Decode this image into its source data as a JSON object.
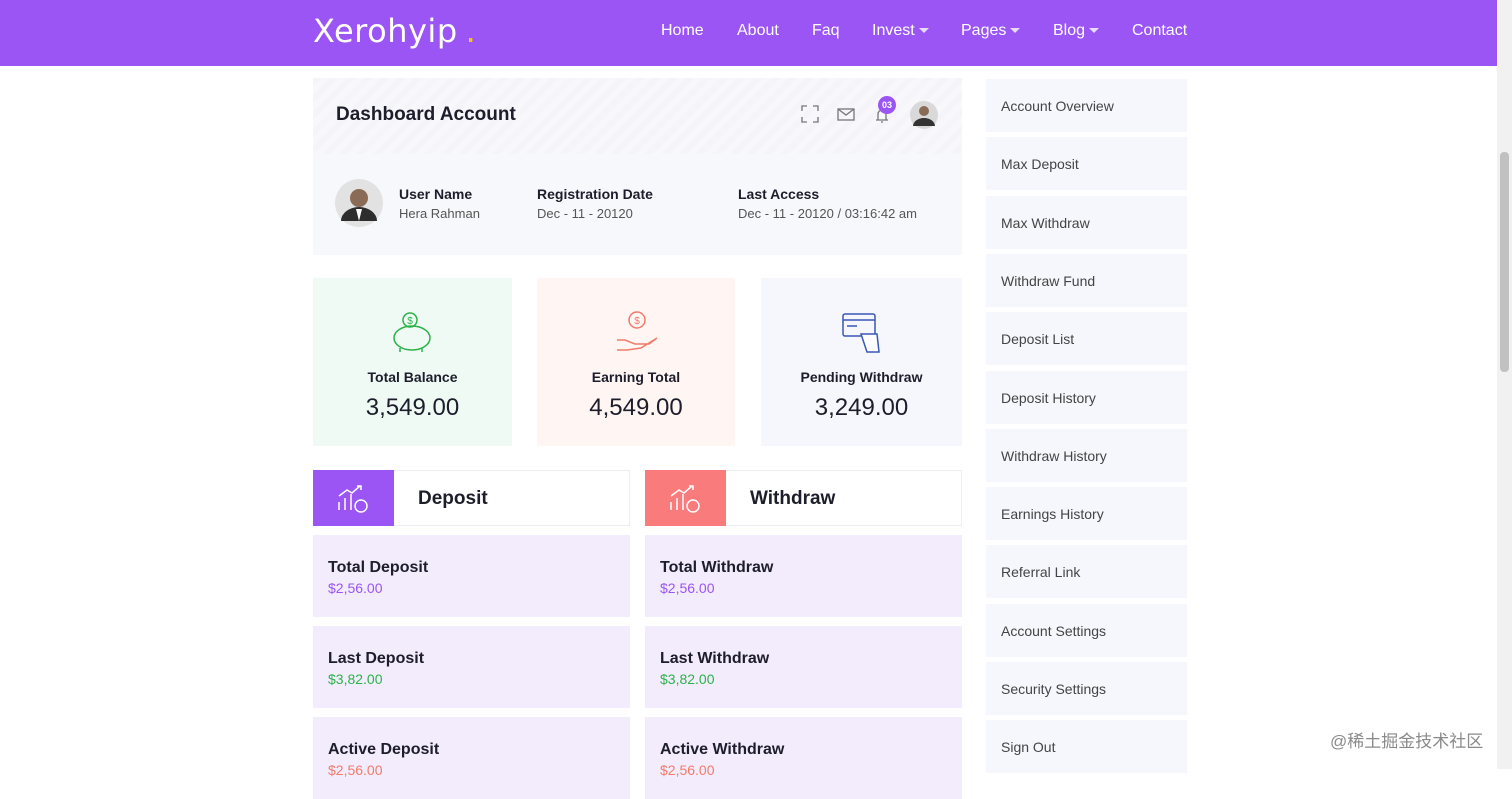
{
  "header": {
    "brand": "Xerohyip",
    "brand_dot": ".",
    "nav": [
      {
        "label": "Home",
        "dropdown": false
      },
      {
        "label": "About",
        "dropdown": false
      },
      {
        "label": "Faq",
        "dropdown": false
      },
      {
        "label": "Invest",
        "dropdown": true
      },
      {
        "label": "Pages",
        "dropdown": true
      },
      {
        "label": "Blog",
        "dropdown": true
      },
      {
        "label": "Contact",
        "dropdown": false
      }
    ]
  },
  "dashboard": {
    "title": "Dashboard Account",
    "notification_count": "03",
    "user": [
      {
        "label": "User Name",
        "value": "Hera Rahman"
      },
      {
        "label": "Registration Date",
        "value": "Dec - 11 - 20120"
      },
      {
        "label": "Last Access",
        "value": "Dec - 11 - 20120 / 03:16:42 am"
      }
    ]
  },
  "stats": [
    {
      "label": "Total Balance",
      "value": "3,549.00"
    },
    {
      "label": "Earning Total",
      "value": "4,549.00"
    },
    {
      "label": "Pending Withdraw",
      "value": "3,249.00"
    }
  ],
  "panels": [
    {
      "title": "Deposit",
      "items": [
        {
          "label": "Total Deposit",
          "value": "$2,56.00"
        },
        {
          "label": "Last Deposit",
          "value": "$3,82.00"
        },
        {
          "label": "Active Deposit",
          "value": "$2,56.00"
        }
      ]
    },
    {
      "title": "Withdraw",
      "items": [
        {
          "label": "Total Withdraw",
          "value": "$2,56.00"
        },
        {
          "label": "Last Withdraw",
          "value": "$3,82.00"
        },
        {
          "label": "Active Withdraw",
          "value": "$2,56.00"
        }
      ]
    }
  ],
  "sidebar": [
    "Account Overview",
    "Max Deposit",
    "Max Withdraw",
    "Withdraw Fund",
    "Deposit List",
    "Deposit History",
    "Withdraw History",
    "Earnings History",
    "Referral Link",
    "Account Settings",
    "Security Settings",
    "Sign Out"
  ],
  "watermark": "@稀土掘金技术社区"
}
